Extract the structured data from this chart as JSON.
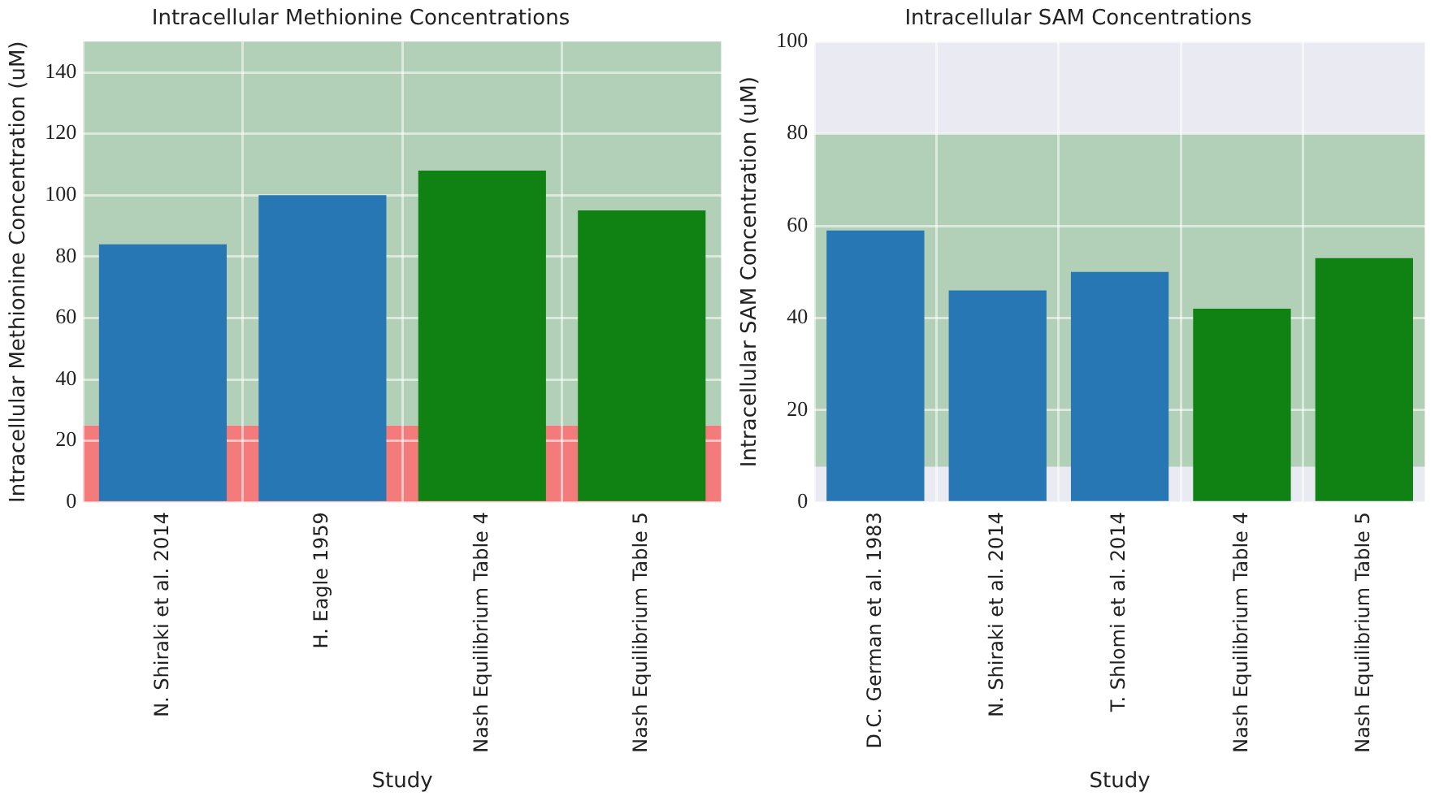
{
  "chart_data": [
    {
      "type": "bar",
      "title": "Intracellular Methionine Concentrations",
      "xlabel": "Study",
      "ylabel": "Intracellular Methionine Concentration (uM)",
      "categories": [
        "N. Shiraki et al. 2014",
        "H. Eagle 1959",
        "Nash Equilibrium Table 4",
        "Nash Equilibrium Table 5"
      ],
      "values": [
        84,
        100,
        108,
        95
      ],
      "colors": [
        "#2777b4",
        "#2777b4",
        "#108214",
        "#108214"
      ],
      "ylim": [
        0,
        150
      ],
      "yticks": [
        0,
        20,
        40,
        60,
        80,
        100,
        120,
        140
      ],
      "grid": true,
      "bands": [
        {
          "axis": "y",
          "from": 0,
          "to": 25,
          "color": "#f47b7b"
        },
        {
          "axis": "y",
          "from": 25,
          "to": 150,
          "color": "#b2d0b7"
        }
      ]
    },
    {
      "type": "bar",
      "title": "Intracellular SAM Concentrations",
      "xlabel": "Study",
      "ylabel": "Intracellular SAM Concentration (uM)",
      "categories": [
        "D.C. German et al. 1983",
        "N. Shiraki et al. 2014",
        "T. Shlomi et al. 2014",
        "Nash Equilibrium Table 4",
        "Nash Equilibrium Table 5"
      ],
      "values": [
        59,
        46,
        50,
        42,
        53
      ],
      "colors": [
        "#2777b4",
        "#2777b4",
        "#2777b4",
        "#108214",
        "#108214"
      ],
      "ylim": [
        0,
        100
      ],
      "yticks": [
        0,
        20,
        40,
        60,
        80,
        100
      ],
      "grid": true,
      "bands": [
        {
          "axis": "y",
          "from": 7.7,
          "to": 80,
          "color": "#b2d0b7"
        }
      ]
    }
  ]
}
